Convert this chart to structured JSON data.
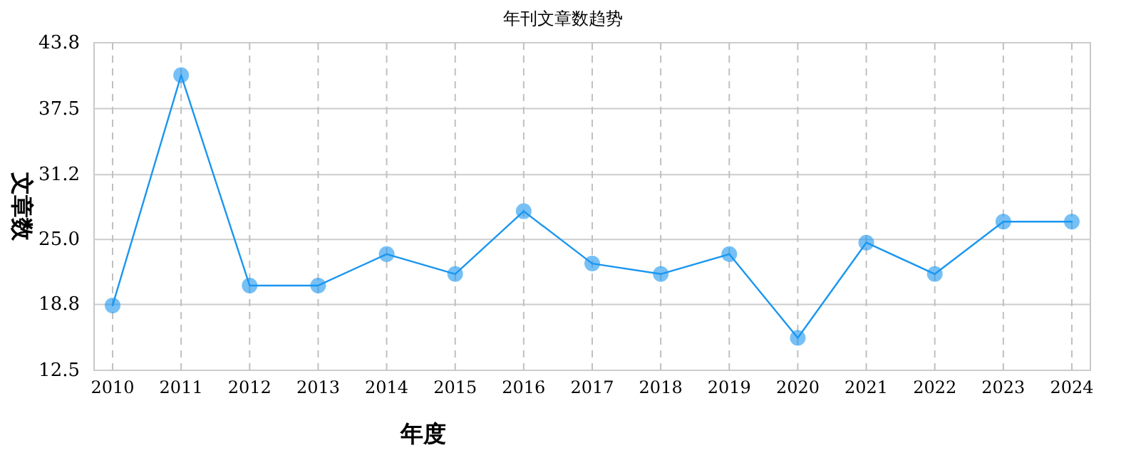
{
  "chart_data": {
    "type": "line",
    "title": "年刊文章数趋势",
    "xlabel": "年度",
    "ylabel": "文章数",
    "categories": [
      "2010",
      "2011",
      "2012",
      "2013",
      "2014",
      "2015",
      "2016",
      "2017",
      "2018",
      "2019",
      "2020",
      "2021",
      "2022",
      "2023",
      "2024"
    ],
    "series": [
      {
        "color": "#1a96f0",
        "values": [
          18.7,
          40.7,
          20.6,
          20.6,
          23.6,
          21.7,
          27.7,
          22.7,
          21.7,
          23.6,
          15.6,
          24.7,
          21.7,
          26.7,
          26.7
        ]
      }
    ],
    "ylim": [
      12.5,
      43.8
    ],
    "yticks": [
      12.5,
      18.8,
      {
        "value": 25,
        "label": "25.0"
      },
      31.2,
      37.5,
      43.8
    ],
    "grid": true,
    "marker": "circle",
    "line_style": "solid"
  }
}
